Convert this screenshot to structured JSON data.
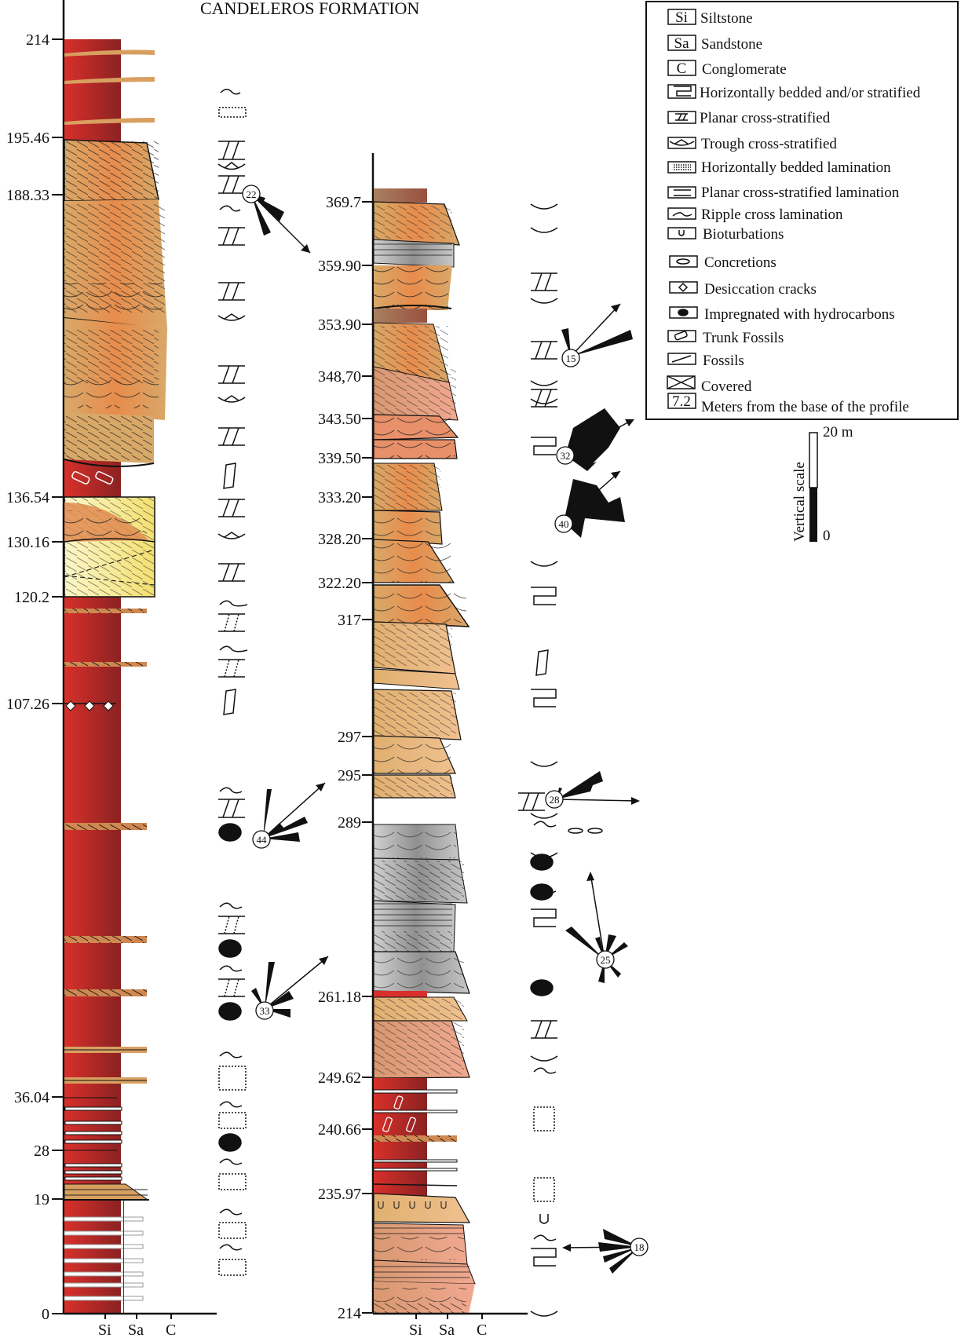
{
  "title": "CANDELEROS FORMATION",
  "left_column": {
    "depth_labels": [
      "214",
      "195.46",
      "188.33",
      "136.54",
      "130.16",
      "120.2",
      "107.26",
      "36.04",
      "28",
      "19",
      "0"
    ],
    "grain_axis": [
      "Si",
      "Sa",
      "C"
    ],
    "paleocurrents": [
      "22",
      "44",
      "33"
    ]
  },
  "right_column": {
    "depth_labels": [
      "369.7",
      "359.90",
      "353.90",
      "348,70",
      "343.50",
      "339.50",
      "333.20",
      "328.20",
      "322.20",
      "317",
      "297",
      "295",
      "289",
      "261.18",
      "249.62",
      "240.66",
      "235.97",
      "214"
    ],
    "grain_axis": [
      "Si",
      "Sa",
      "C"
    ],
    "paleocurrents": [
      "15",
      "32",
      "40",
      "28",
      "25",
      "18"
    ]
  },
  "legend": {
    "items": [
      {
        "key": "Si",
        "label": "Siltstone"
      },
      {
        "key": "Sa",
        "label": "Sandstone"
      },
      {
        "key": "C",
        "label": "Conglomerate"
      },
      {
        "key": "",
        "label": "Horizontally bedded and/or stratified"
      },
      {
        "key": "",
        "label": "Planar cross-stratified"
      },
      {
        "key": "",
        "label": "Trough cross-stratified"
      },
      {
        "key": "",
        "label": "Horizontally bedded lamination"
      },
      {
        "key": "",
        "label": "Planar cross-stratified lamination"
      },
      {
        "key": "",
        "label": "Ripple cross lamination"
      },
      {
        "key": "",
        "label": "Bioturbations"
      },
      {
        "key": "",
        "label": "Concretions"
      },
      {
        "key": "",
        "label": "Desiccation cracks"
      },
      {
        "key": "",
        "label": "Impregnated with hydrocarbons"
      },
      {
        "key": "",
        "label": "Trunk Fossils"
      },
      {
        "key": "",
        "label": "Fossils"
      },
      {
        "key": "",
        "label": "Covered"
      },
      {
        "key": "7.2",
        "label": "Meters from the base of the profile"
      }
    ]
  },
  "scale": {
    "label": "Vertical scale",
    "top": "20 m",
    "bottom": "0"
  },
  "colors": {
    "mudstone": "#c9302c",
    "sand": "#e0a060",
    "orange": "#e8844a",
    "grey": "#a8a8a8",
    "yellow": "#f7f0a0",
    "brown": "#9a6a55"
  }
}
